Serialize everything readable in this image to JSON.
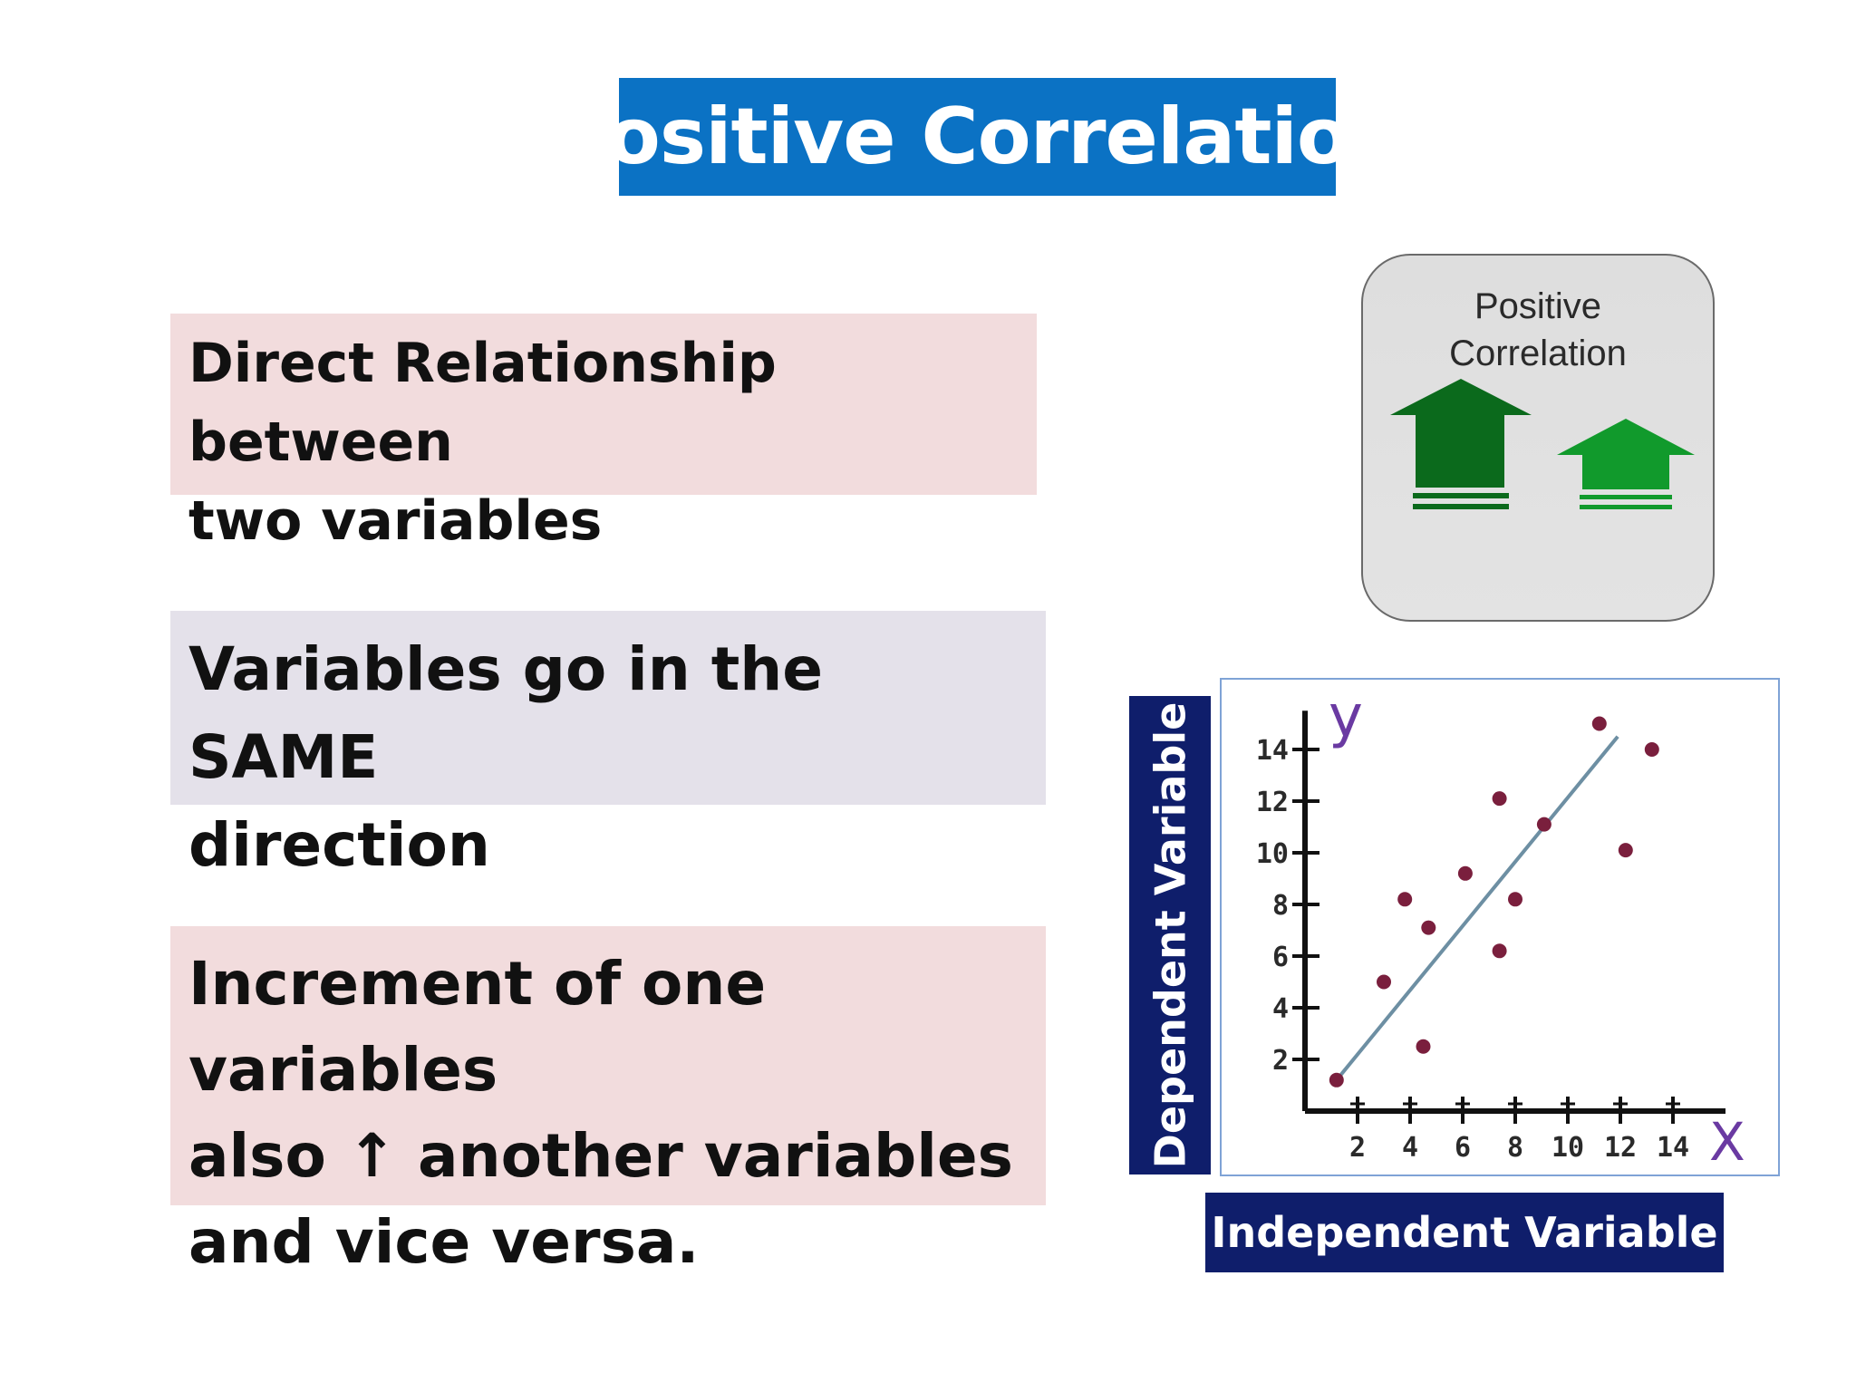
{
  "title": "Positive Correlation",
  "points": [
    {
      "lines": [
        "Direct Relationship between",
        "two variables"
      ]
    },
    {
      "lines": [
        "Variables go in the SAME",
        "direction"
      ]
    },
    {
      "lines": [
        "Increment of one variables",
        "also ↑ another variables",
        "and vice versa."
      ]
    }
  ],
  "icon": {
    "caption_lines": [
      "Positive",
      "Correlation"
    ],
    "colors": {
      "dark_arrow": "#0b6a1c",
      "light_arrow": "#119a2c",
      "card": "#e0e0e0"
    },
    "icons": [
      "up-arrow-icon",
      "up-arrow-icon"
    ]
  },
  "labels": {
    "y_axis": "Dependent Variable",
    "x_axis": "Independent Variable"
  },
  "colors": {
    "title_bg": "#0b72c4",
    "point_pink": "#f2dcdd",
    "point_lavender": "#e4e1ea",
    "label_bg": "#0f1e6b"
  },
  "chart_data": {
    "type": "scatter",
    "x_symbol": "X",
    "y_symbol": "y",
    "x_ticks": [
      "2",
      "4",
      "6",
      "8",
      "10",
      "12",
      "14"
    ],
    "y_ticks": [
      "2",
      "4",
      "6",
      "8",
      "10",
      "12",
      "14"
    ],
    "xlim": [
      0,
      16
    ],
    "ylim": [
      0,
      15.5
    ],
    "points": [
      {
        "x": 1.2,
        "y": 1.2
      },
      {
        "x": 3.0,
        "y": 5.0
      },
      {
        "x": 3.8,
        "y": 8.2
      },
      {
        "x": 4.5,
        "y": 2.5
      },
      {
        "x": 4.7,
        "y": 7.1
      },
      {
        "x": 6.1,
        "y": 9.2
      },
      {
        "x": 7.4,
        "y": 6.2
      },
      {
        "x": 7.4,
        "y": 12.1
      },
      {
        "x": 8.0,
        "y": 8.2
      },
      {
        "x": 9.1,
        "y": 11.1
      },
      {
        "x": 11.2,
        "y": 15.0
      },
      {
        "x": 12.2,
        "y": 10.1
      },
      {
        "x": 13.2,
        "y": 14.0
      }
    ],
    "trend_line": {
      "x": [
        1.2,
        11.9
      ],
      "y": [
        1.2,
        14.5
      ]
    },
    "colors": {
      "points": "#7a1f3d",
      "line": "#6d8fa3",
      "axes": "#111111",
      "symbols": "#6a3aa2"
    }
  }
}
